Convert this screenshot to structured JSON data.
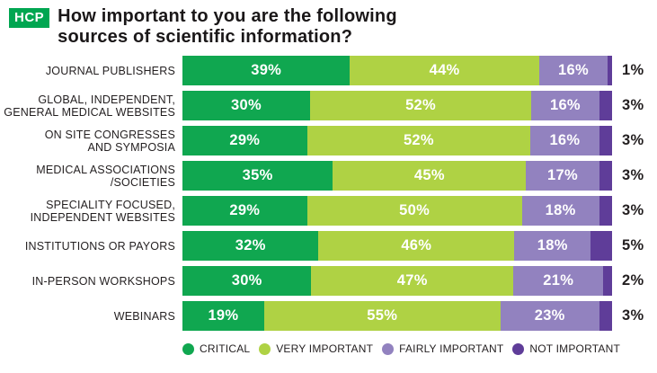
{
  "badge": {
    "label": "HCP",
    "color": "#00A651"
  },
  "title": {
    "line1": "How important to you are the following",
    "line2": "sources of scientific information?"
  },
  "colors": {
    "badge_green": "#00A651",
    "critical": "#10A750",
    "very_important": "#AFD244",
    "fairly_important": "#9282BF",
    "not_important": "#5F3D99",
    "text": "#231F20",
    "bar_value_text": "#FFFFFF"
  },
  "chart_data": {
    "type": "bar",
    "stacked": true,
    "orientation": "horizontal",
    "value_format": "percent",
    "xlim": [
      0,
      100
    ],
    "grid": false,
    "legend_position": "bottom",
    "title": "How important to you are the following sources of scientific information?",
    "audience_tag": "HCP",
    "categories": [
      [
        "JOURNAL PUBLISHERS"
      ],
      [
        "GLOBAL, INDEPENDENT,",
        "GENERAL MEDICAL WEBSITES"
      ],
      [
        "ON SITE CONGRESSES",
        "AND SYMPOSIA"
      ],
      [
        "MEDICAL ASSOCIATIONS",
        "/SOCIETIES"
      ],
      [
        "SPECIALITY FOCUSED,",
        "INDEPENDENT WEBSITES"
      ],
      [
        "INSTITUTIONS OR PAYORS"
      ],
      [
        "IN-PERSON WORKSHOPS"
      ],
      [
        "WEBINARS"
      ]
    ],
    "series": [
      {
        "name": "CRITICAL",
        "color": "#10A750",
        "values": [
          39,
          30,
          29,
          35,
          29,
          32,
          30,
          19
        ]
      },
      {
        "name": "VERY IMPORTANT",
        "color": "#AFD244",
        "values": [
          44,
          52,
          52,
          45,
          50,
          46,
          47,
          55
        ]
      },
      {
        "name": "FAIRLY IMPORTANT",
        "color": "#9282BF",
        "values": [
          16,
          16,
          16,
          17,
          18,
          18,
          21,
          23
        ]
      },
      {
        "name": "NOT IMPORTANT",
        "color": "#5F3D99",
        "values": [
          1,
          3,
          3,
          3,
          3,
          5,
          2,
          3
        ]
      }
    ]
  }
}
